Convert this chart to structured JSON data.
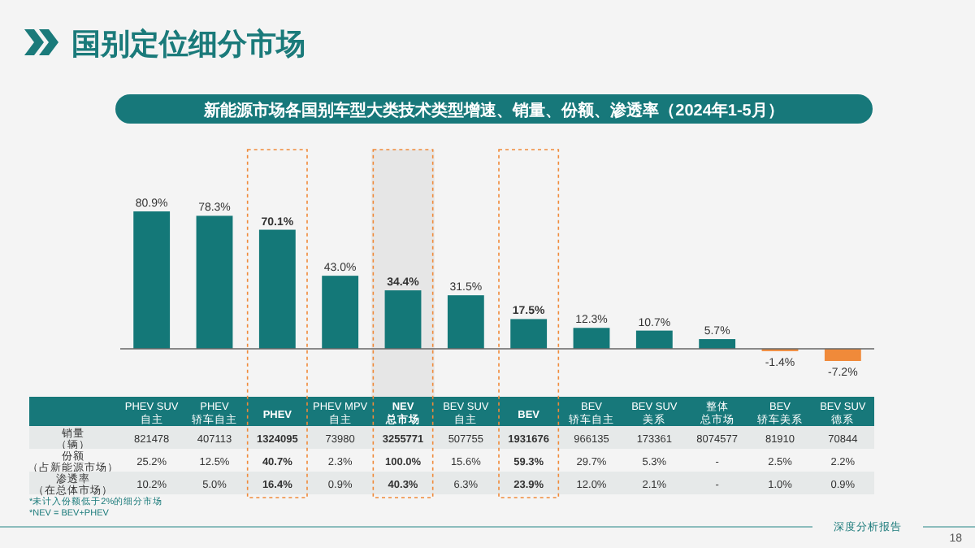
{
  "chart_data": {
    "type": "bar",
    "title": "国别定位细分市场",
    "subtitle": "新能源市场各国别车型大类技术类型增速、销量、份额、渗透率（2024年1-5月）",
    "categories": [
      "PHEV SUV自主",
      "PHEV 轿车自主",
      "PHEV",
      "PHEV MPV自主",
      "NEV总市场",
      "BEV SUV自主",
      "BEV",
      "BEV 轿车自主",
      "BEV SUV美系",
      "整体总市场",
      "BEV 轿车美系",
      "BEV SUV德系"
    ],
    "values": [
      80.9,
      78.3,
      70.1,
      43.0,
      34.4,
      31.5,
      17.5,
      12.3,
      10.7,
      5.7,
      -1.4,
      -7.2
    ],
    "value_labels": [
      "80.9%",
      "78.3%",
      "70.1%",
      "43.0%",
      "34.4%",
      "31.5%",
      "17.5%",
      "12.3%",
      "10.7%",
      "5.7%",
      "-1.4%",
      "-7.2%"
    ],
    "colors": [
      "#147878",
      "#147878",
      "#147878",
      "#147878",
      "#147878",
      "#147878",
      "#147878",
      "#147878",
      "#147878",
      "#147878",
      "#f08a3a",
      "#f08a3a"
    ],
    "annotations": [
      "*未计入份额低于2%的细分市场",
      "*NEV = BEV+PHEV",
      "深度分析报告",
      "18",
      "销量（辆）",
      "份额（占新能源市场）",
      "渗透率（在总体市场）",
      "821478",
      "407113",
      "1324095",
      "73980",
      "3255771",
      "507755",
      "1931676",
      "966135",
      "173361",
      "8074577",
      "81910",
      "70844",
      "25.2%",
      "12.5%",
      "40.7%",
      "2.3%",
      "100.0%",
      "15.6%",
      "59.3%",
      "29.7%",
      "5.3%",
      "-",
      "2.5%",
      "2.2%",
      "10.2%",
      "5.0%",
      "16.4%",
      "0.9%",
      "40.3%",
      "6.3%",
      "23.9%",
      "12.0%",
      "2.1%",
      "-",
      "1.0%",
      "0.9%"
    ]
  }
}
